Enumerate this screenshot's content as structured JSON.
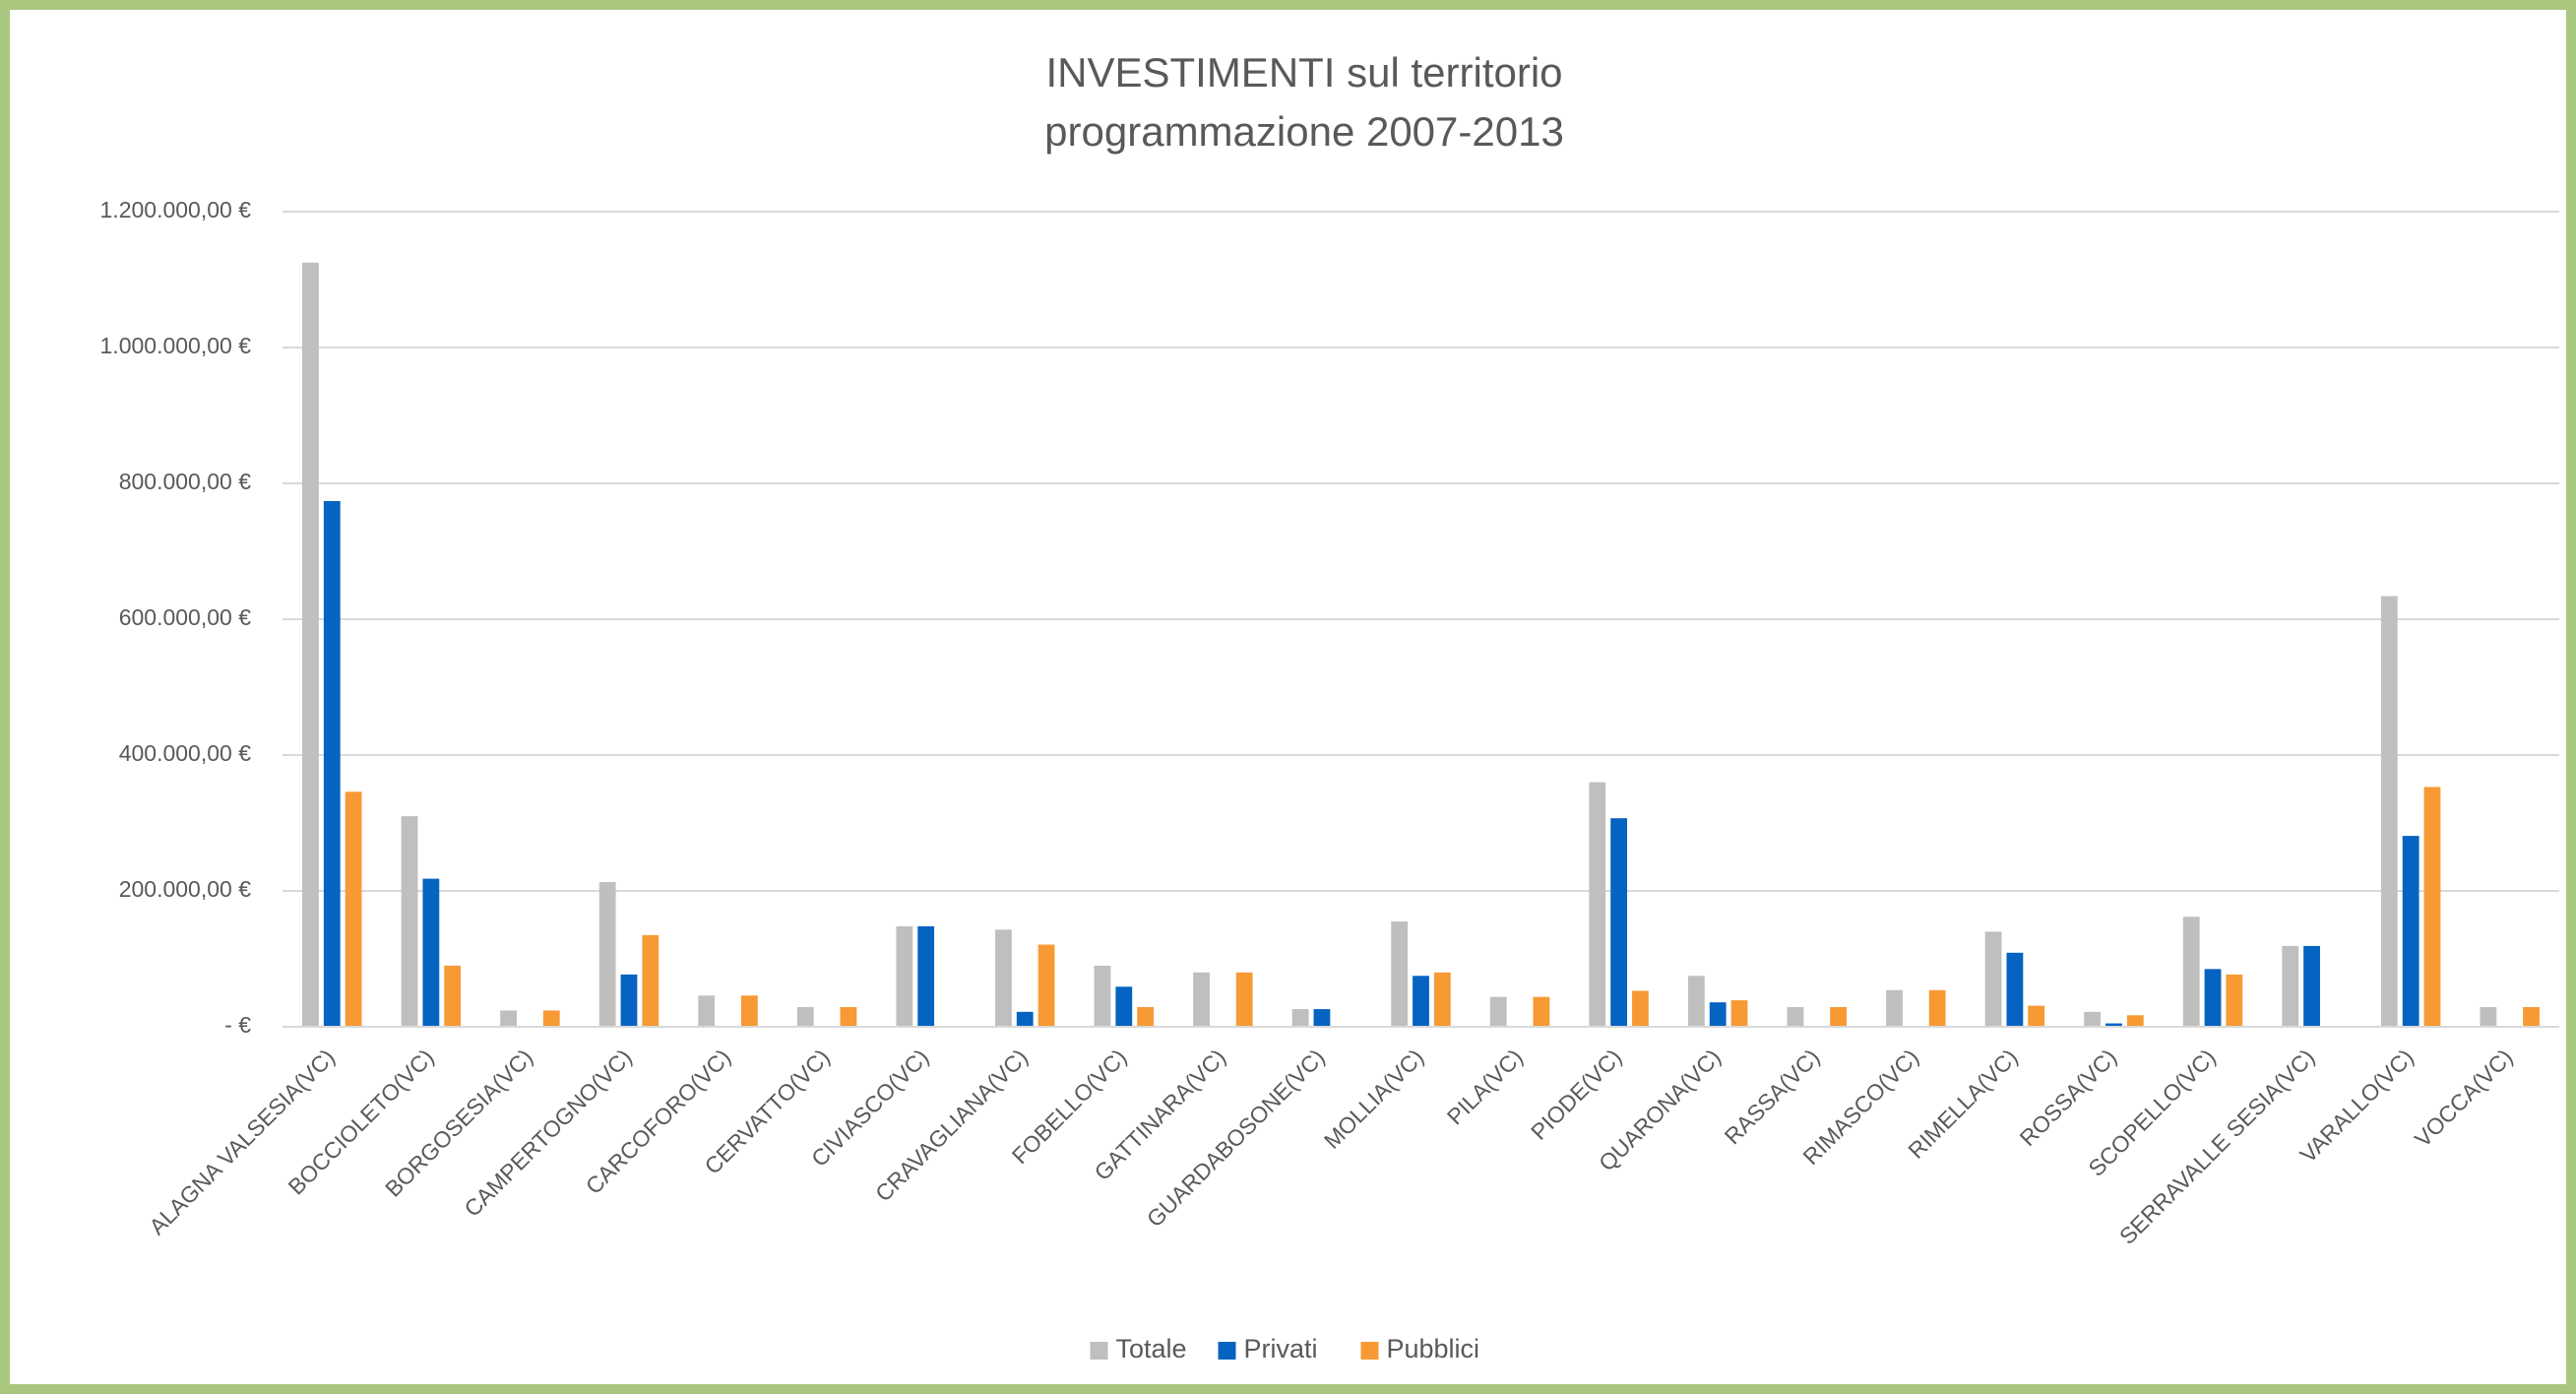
{
  "chart_data": {
    "type": "bar",
    "title": [
      "INVESTIMENTI sul territorio",
      "programmazione 2007-2013"
    ],
    "categories": [
      "ALAGNA VALSESIA(VC)",
      "BOCCIOLETO(VC)",
      "BORGOSESIA(VC)",
      "CAMPERTOGNO(VC)",
      "CARCOFORO(VC)",
      "CERVATTO(VC)",
      "CIVIASCO(VC)",
      "CRAVAGLIANA(VC)",
      "FOBELLO(VC)",
      "GATTINARA(VC)",
      "GUARDABOSONE(VC)",
      "MOLLIA(VC)",
      "PILA(VC)",
      "PIODE(VC)",
      "QUARONA(VC)",
      "RASSA(VC)",
      "RIMASCO(VC)",
      "RIMELLA(VC)",
      "ROSSA(VC)",
      "SCOPELLO(VC)",
      "SERRAVALLE SESIA(VC)",
      "VARALLO(VC)",
      "VOCCA(VC)"
    ],
    "series": [
      {
        "name": "Totale",
        "color": "#bfbfbf",
        "values": [
          1125000,
          310000,
          24000,
          213000,
          46000,
          29000,
          148000,
          143000,
          90000,
          80000,
          26000,
          155000,
          44000,
          360000,
          75000,
          29000,
          54000,
          140000,
          22000,
          162000,
          119000,
          634000,
          29000
        ]
      },
      {
        "name": "Privati",
        "color": "#0563c1",
        "values": [
          774000,
          218000,
          0,
          77000,
          0,
          0,
          148000,
          22000,
          59000,
          0,
          26000,
          75000,
          0,
          307000,
          36000,
          0,
          0,
          109000,
          5000,
          85000,
          119000,
          281000,
          0
        ]
      },
      {
        "name": "Pubblici",
        "color": "#f79a34",
        "values": [
          346000,
          90000,
          24000,
          135000,
          46000,
          29000,
          0,
          121000,
          29000,
          80000,
          0,
          80000,
          44000,
          53000,
          39000,
          29000,
          54000,
          31000,
          17000,
          77000,
          0,
          353000,
          29000
        ]
      }
    ],
    "ylim": [
      0,
      1200000
    ],
    "yticks": [
      {
        "value": 0,
        "label": "-   €"
      },
      {
        "value": 200000,
        "label": "200.000,00 €"
      },
      {
        "value": 400000,
        "label": "400.000,00 €"
      },
      {
        "value": 600000,
        "label": "600.000,00 €"
      },
      {
        "value": 800000,
        "label": "800.000,00 €"
      },
      {
        "value": 1000000,
        "label": "1.000.000,00 €"
      },
      {
        "value": 1200000,
        "label": "1.200.000,00 €"
      }
    ],
    "grid": true,
    "legend": "bottom"
  }
}
